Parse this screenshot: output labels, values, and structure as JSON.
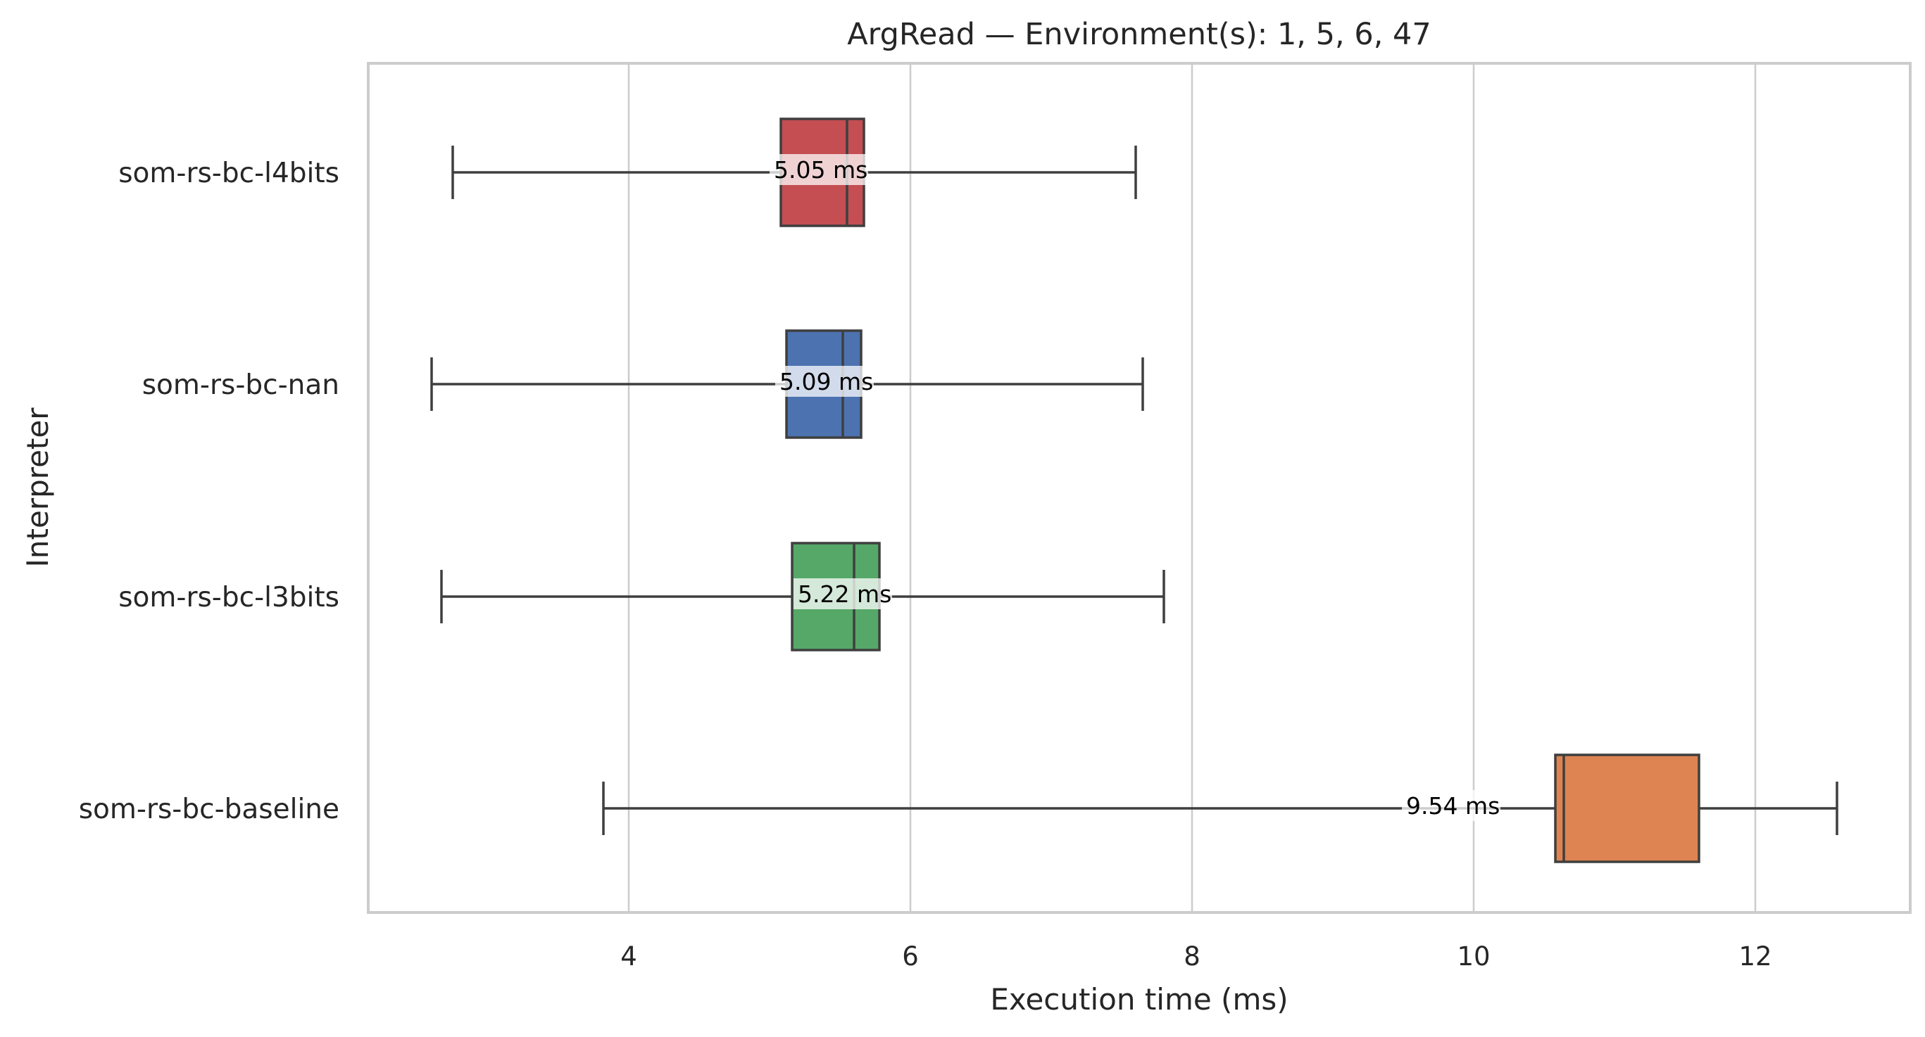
{
  "chart_data": {
    "type": "box",
    "title": "ArgRead — Environment(s): 1, 5, 6, 47",
    "xlabel": "Execution time (ms)",
    "ylabel": "Interpreter",
    "xlim": [
      2.15,
      13.1
    ],
    "xticks": [
      4,
      6,
      8,
      10,
      12
    ],
    "xtick_labels": [
      "4",
      "6",
      "8",
      "10",
      "12"
    ],
    "grid": "vertical",
    "orientation": "horizontal",
    "series": [
      {
        "name": "som-rs-bc-l4bits",
        "whisker_low": 2.75,
        "q1": 5.08,
        "median": 5.55,
        "q3": 5.67,
        "whisker_high": 7.6,
        "label": "5.05 ms",
        "label_value": 5.05,
        "color": "#c44e52"
      },
      {
        "name": "som-rs-bc-nan",
        "whisker_low": 2.6,
        "q1": 5.12,
        "median": 5.52,
        "q3": 5.65,
        "whisker_high": 7.65,
        "label": "5.09 ms",
        "label_value": 5.09,
        "color": "#4c72b0"
      },
      {
        "name": "som-rs-bc-l3bits",
        "whisker_low": 2.67,
        "q1": 5.16,
        "median": 5.6,
        "q3": 5.78,
        "whisker_high": 7.8,
        "label": "5.22 ms",
        "label_value": 5.22,
        "color": "#55a868"
      },
      {
        "name": "som-rs-bc-baseline",
        "whisker_low": 3.82,
        "q1": 10.58,
        "median": 10.64,
        "q3": 11.6,
        "whisker_high": 12.58,
        "label": "9.54 ms",
        "label_value": 9.54,
        "color": "#dd8452"
      }
    ]
  }
}
